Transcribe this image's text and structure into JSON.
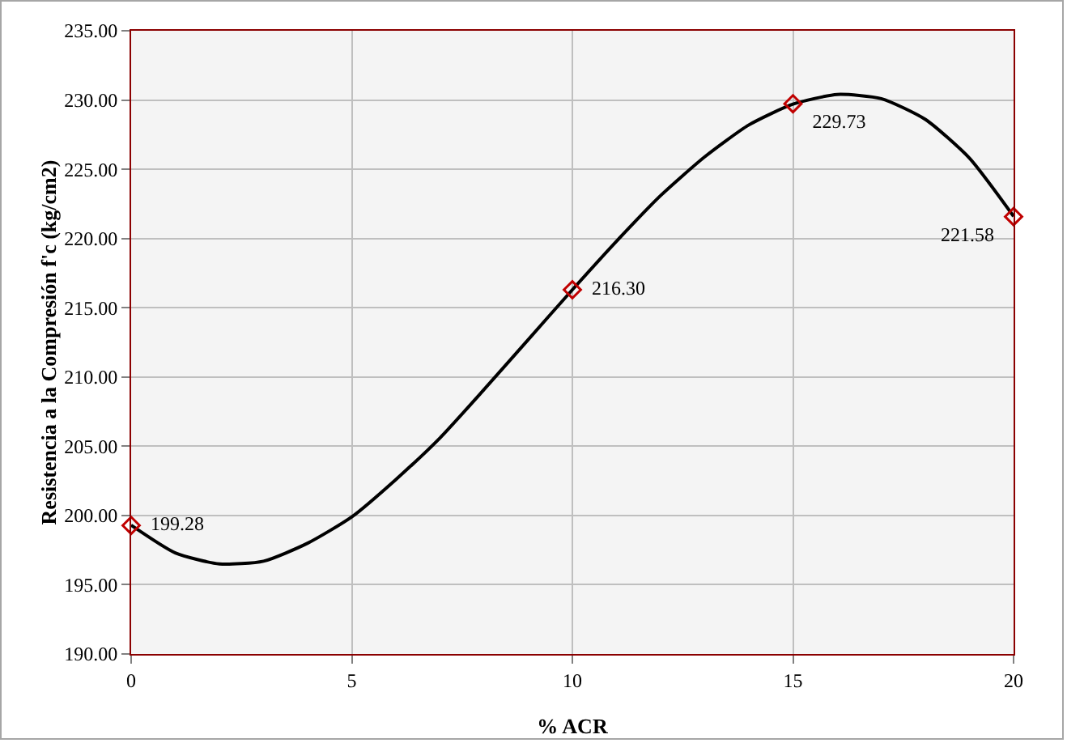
{
  "chart_data": {
    "type": "scatter",
    "xlabel": "% ACR",
    "ylabel": "Resistencia a la Compresión f'c (kg/cm2)",
    "xlim": [
      0,
      20
    ],
    "xticks": [
      0,
      5,
      10,
      15,
      20
    ],
    "ylim": [
      190,
      235
    ],
    "yticks": [
      {
        "value": 190,
        "label": "190.00"
      },
      {
        "value": 195,
        "label": "195.00"
      },
      {
        "value": 200,
        "label": "200.00"
      },
      {
        "value": 205,
        "label": "205.00"
      },
      {
        "value": 210,
        "label": "210.00"
      },
      {
        "value": 215,
        "label": "215.00"
      },
      {
        "value": 220,
        "label": "220.00"
      },
      {
        "value": 225,
        "label": "225.00"
      },
      {
        "value": 230,
        "label": "230.00"
      },
      {
        "value": 235,
        "label": "235.00"
      }
    ],
    "grid": true,
    "series": [
      {
        "type": "line",
        "color": "#000000",
        "marker": "none",
        "line_style": "solid",
        "x": [
          0,
          1,
          2,
          3,
          4,
          5,
          6,
          7,
          8,
          9,
          10,
          11,
          12,
          13,
          14,
          15,
          16,
          17,
          18,
          19,
          20
        ],
        "values": [
          199.3,
          197.3,
          196.5,
          196.7,
          198.0,
          199.9,
          202.6,
          205.6,
          209.1,
          212.7,
          216.3,
          219.8,
          223.1,
          225.9,
          228.2,
          229.7,
          230.4,
          230.1,
          228.6,
          225.8,
          221.6
        ]
      },
      {
        "type": "scatter",
        "color": "#c00000",
        "marker": "diamond",
        "x": [
          0,
          10,
          15,
          20
        ],
        "values": [
          199.28,
          216.3,
          229.73,
          221.58
        ],
        "value_labels": [
          "199.28",
          "216.30",
          "229.73",
          "221.58"
        ]
      }
    ]
  }
}
